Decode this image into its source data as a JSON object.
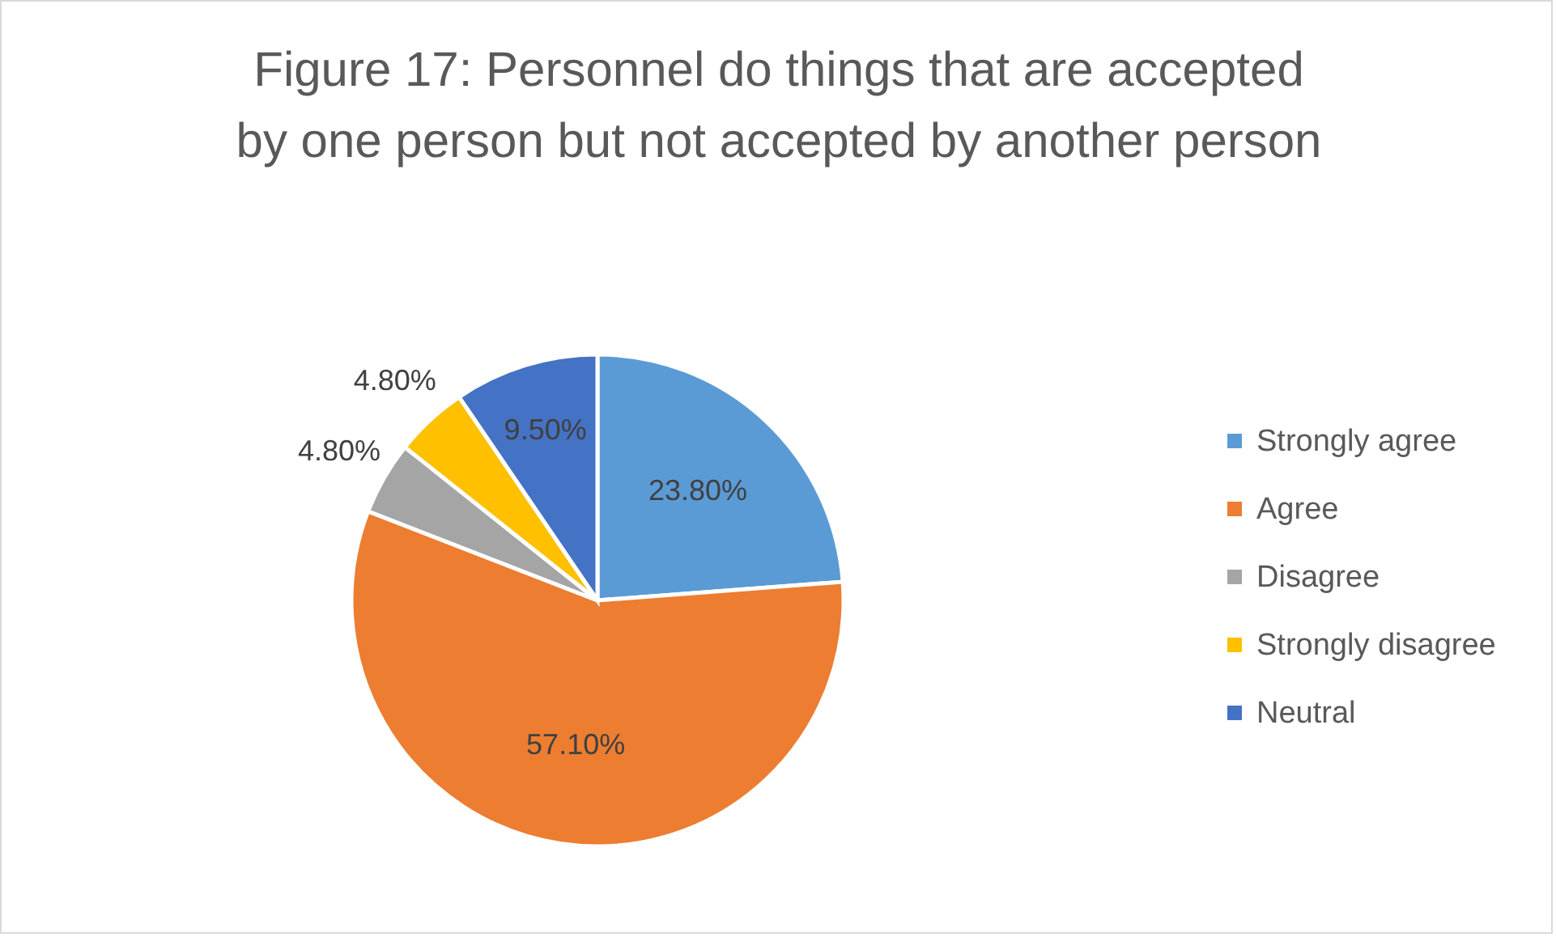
{
  "chart_data": {
    "type": "pie",
    "title": "Figure 17: Personnel do things that are accepted by one person but not accepted by another person",
    "categories": [
      "Strongly agree",
      "Agree",
      "Disagree",
      "Strongly disagree",
      "Neutral"
    ],
    "values": [
      23.8,
      57.1,
      4.8,
      4.8,
      9.5
    ],
    "colors": [
      "#5b9bd5",
      "#ed7d31",
      "#a5a5a5",
      "#ffc000",
      "#4472c4"
    ],
    "value_labels": [
      "23.80%",
      "57.10%",
      "4.80%",
      "4.80%",
      "9.50%"
    ],
    "legend": "right"
  }
}
